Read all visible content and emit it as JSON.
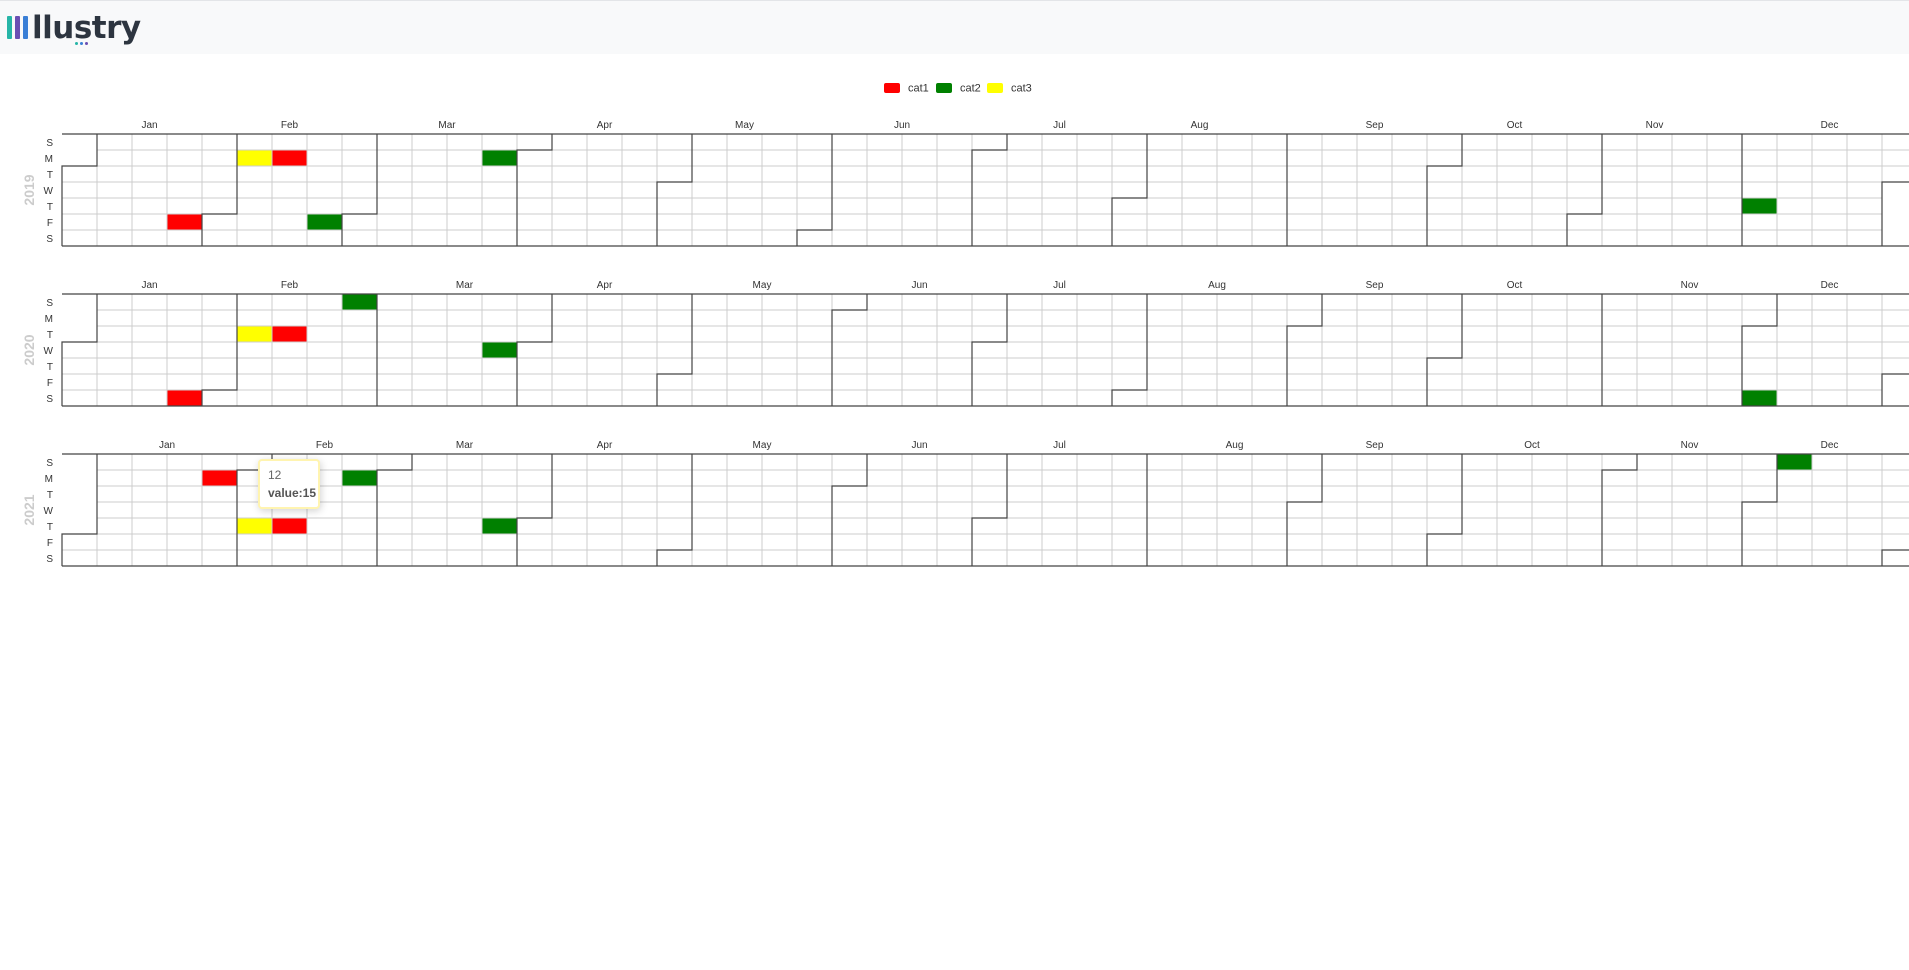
{
  "header": {
    "logo_text": "llustry"
  },
  "chart_data": {
    "type": "calendar-heatmap",
    "legend": [
      {
        "name": "cat1",
        "color": "#ff0000"
      },
      {
        "name": "cat2",
        "color": "#008000"
      },
      {
        "name": "cat3",
        "color": "#ffff00"
      }
    ],
    "day_labels": [
      "S",
      "M",
      "T",
      "W",
      "T",
      "F",
      "S"
    ],
    "month_labels": [
      "Jan",
      "Feb",
      "Mar",
      "Apr",
      "May",
      "Jun",
      "Jul",
      "Aug",
      "Sep",
      "Oct",
      "Nov",
      "Dec"
    ],
    "years": [
      "2019",
      "2020",
      "2021"
    ],
    "cells": [
      {
        "date": "2019-01-25",
        "category": "cat1"
      },
      {
        "date": "2019-02-04",
        "category": "cat3"
      },
      {
        "date": "2019-02-11",
        "category": "cat1"
      },
      {
        "date": "2019-02-22",
        "category": "cat2"
      },
      {
        "date": "2019-03-25",
        "category": "cat2"
      },
      {
        "date": "2019-12-05",
        "category": "cat2"
      },
      {
        "date": "2020-01-25",
        "category": "cat1"
      },
      {
        "date": "2020-02-04",
        "category": "cat3"
      },
      {
        "date": "2020-02-11",
        "category": "cat1"
      },
      {
        "date": "2020-02-23",
        "category": "cat2"
      },
      {
        "date": "2020-03-25",
        "category": "cat2"
      },
      {
        "date": "2020-12-05",
        "category": "cat2"
      },
      {
        "date": "2021-01-25",
        "category": "cat1"
      },
      {
        "date": "2021-02-04",
        "category": "cat3"
      },
      {
        "date": "2021-02-11",
        "category": "cat1"
      },
      {
        "date": "2021-02-22",
        "category": "cat2"
      },
      {
        "date": "2021-03-25",
        "category": "cat2"
      },
      {
        "date": "2021-12-05",
        "category": "cat2"
      }
    ]
  },
  "tooltip": {
    "name": "12",
    "value_text": "value:15"
  }
}
